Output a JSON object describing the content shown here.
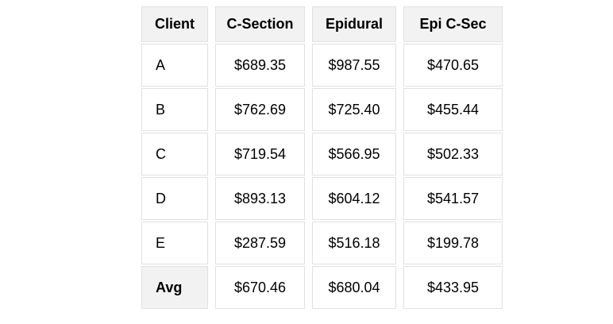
{
  "table": {
    "columns": [
      "Client",
      "C-Section",
      "Epidural",
      "Epi C-Sec"
    ],
    "rows": [
      {
        "label": "A",
        "values": [
          "$689.35",
          "$987.55",
          "$470.65"
        ],
        "summary": false
      },
      {
        "label": "B",
        "values": [
          "$762.69",
          "$725.40",
          "$455.44"
        ],
        "summary": false
      },
      {
        "label": "C",
        "values": [
          "$719.54",
          "$566.95",
          "$502.33"
        ],
        "summary": false
      },
      {
        "label": "D",
        "values": [
          "$893.13",
          "$604.12",
          "$541.57"
        ],
        "summary": false
      },
      {
        "label": "E",
        "values": [
          "$287.59",
          "$516.18",
          "$199.78"
        ],
        "summary": false
      },
      {
        "label": "Avg",
        "values": [
          "$670.46",
          "$680.04",
          "$433.95"
        ],
        "summary": true
      }
    ]
  },
  "chart_data": {
    "type": "table",
    "columns": [
      "Client",
      "C-Section",
      "Epidural",
      "Epi C-Sec"
    ],
    "rows": [
      {
        "client": "A",
        "c_section": 689.35,
        "epidural": 987.55,
        "epi_c_sec": 470.65
      },
      {
        "client": "B",
        "c_section": 762.69,
        "epidural": 725.4,
        "epi_c_sec": 455.44
      },
      {
        "client": "C",
        "c_section": 719.54,
        "epidural": 566.95,
        "epi_c_sec": 502.33
      },
      {
        "client": "D",
        "c_section": 893.13,
        "epidural": 604.12,
        "epi_c_sec": 541.57
      },
      {
        "client": "E",
        "c_section": 287.59,
        "epidural": 516.18,
        "epi_c_sec": 199.78
      },
      {
        "client": "Avg",
        "c_section": 670.46,
        "epidural": 680.04,
        "epi_c_sec": 433.95
      }
    ],
    "value_prefix": "$",
    "value_decimals": 2
  },
  "colors": {
    "header_bg": "#f2f2f2",
    "cell_bg": "#ffffff",
    "border": "#e1e1e1",
    "text": "#000000"
  }
}
